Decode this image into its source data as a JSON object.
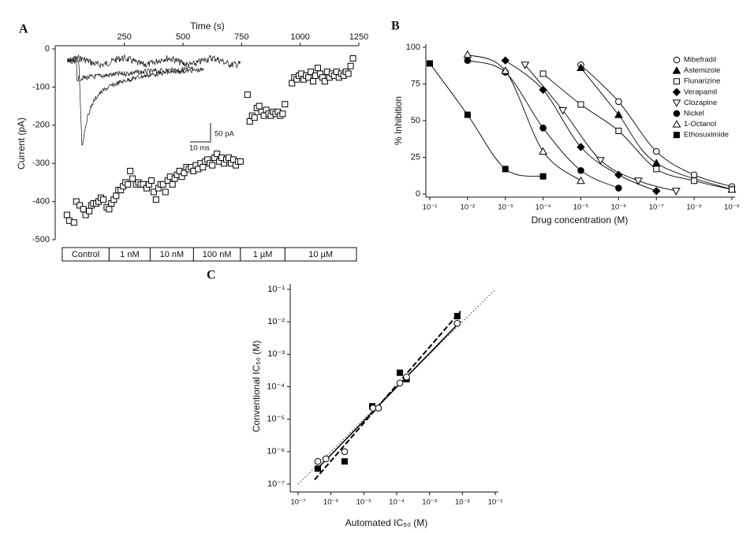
{
  "chart_data": [
    {
      "type": "scatter",
      "panel": "A",
      "xlabel": "Time (s)",
      "ylabel": "Current (pA)",
      "x": [
        5,
        15,
        35,
        45,
        60,
        75,
        85,
        100,
        110,
        118,
        130,
        140,
        150,
        160,
        175,
        185,
        195,
        205,
        215,
        225,
        235,
        245,
        255,
        265,
        275,
        285,
        300,
        310,
        320,
        330,
        345,
        355,
        365,
        375,
        385,
        395,
        405,
        415,
        425,
        435,
        445,
        455,
        465,
        475,
        485,
        495,
        505,
        515,
        525,
        535,
        545,
        555,
        565,
        575,
        585,
        595,
        605,
        615,
        625,
        635,
        645,
        655,
        665,
        675,
        685,
        695,
        705,
        715,
        725,
        735,
        745,
        775,
        785,
        795,
        805,
        815,
        825,
        835,
        845,
        855,
        865,
        875,
        885,
        895,
        905,
        915,
        925,
        935,
        965,
        975,
        985,
        995,
        1005,
        1015,
        1025,
        1035,
        1045,
        1055,
        1065,
        1075,
        1085,
        1095,
        1105,
        1115,
        1125,
        1135,
        1145,
        1155,
        1165,
        1175,
        1185,
        1195,
        1205,
        1215,
        1225
      ],
      "values": [
        -435,
        -450,
        -455,
        -400,
        -410,
        -420,
        -435,
        -425,
        -410,
        -405,
        -405,
        -400,
        -390,
        -395,
        -415,
        -420,
        -405,
        -395,
        -385,
        -370,
        -370,
        -360,
        -350,
        -355,
        -320,
        -340,
        -355,
        -350,
        -355,
        -355,
        -365,
        -355,
        -345,
        -375,
        -395,
        -365,
        -355,
        -355,
        -375,
        -345,
        -335,
        -355,
        -340,
        -330,
        -320,
        -335,
        -325,
        -310,
        -315,
        -310,
        -320,
        -305,
        -315,
        -300,
        -310,
        -295,
        -290,
        -300,
        -305,
        -285,
        -275,
        -295,
        -285,
        -300,
        -290,
        -285,
        -300,
        -290,
        -305,
        -295,
        -295,
        -120,
        -190,
        -175,
        -180,
        -155,
        -150,
        -165,
        -175,
        -160,
        -170,
        -175,
        -165,
        -170,
        -165,
        -175,
        -170,
        -145,
        -90,
        -75,
        -80,
        -70,
        -65,
        -80,
        -70,
        -75,
        -60,
        -85,
        -70,
        -50,
        -65,
        -75,
        -85,
        -60,
        -75,
        -65,
        -70,
        -60,
        -75,
        -65,
        -70,
        -60,
        -65,
        -45,
        -25
      ],
      "marker": "square-open",
      "color": "#000000",
      "xlim": [
        -45,
        1250
      ],
      "xticks": [
        250,
        500,
        750,
        1000,
        1250
      ],
      "xaxis_position": "top",
      "ylim": [
        -500,
        0
      ],
      "yticks": [
        0,
        -100,
        -200,
        -300,
        -400,
        -500
      ],
      "periods": [
        {
          "label": "Control",
          "start": -15,
          "end": 185
        },
        {
          "label": "1 nM",
          "start": 185,
          "end": 360
        },
        {
          "label": "10 nM",
          "start": 360,
          "end": 545
        },
        {
          "label": "100 nM",
          "start": 545,
          "end": 745
        },
        {
          "label": "1 µM",
          "start": 745,
          "end": 935
        },
        {
          "label": "10 µM",
          "start": 935,
          "end": 1240
        }
      ],
      "inset_scale_labels": [
        "50 pA",
        "10 ms"
      ]
    },
    {
      "type": "scatter",
      "panel": "B",
      "xlabel": "Drug concentration (M)",
      "ylabel": "% Inhibition",
      "xscale": "log",
      "xlim": [
        0.1,
        1e-09
      ],
      "xticks": [
        {
          "value": 0.1,
          "label": "10⁻¹"
        },
        {
          "value": 0.01,
          "label": "10⁻²"
        },
        {
          "value": 0.001,
          "label": "10⁻³"
        },
        {
          "value": 0.0001,
          "label": "10⁻⁴"
        },
        {
          "value": 1e-05,
          "label": "10⁻⁵"
        },
        {
          "value": 1e-06,
          "label": "10⁻⁶"
        },
        {
          "value": 1e-07,
          "label": "10⁻⁷"
        },
        {
          "value": 1e-08,
          "label": "10⁻⁸"
        },
        {
          "value": 1e-09,
          "label": "10⁻⁹"
        }
      ],
      "ylim": [
        0,
        100
      ],
      "yticks": [
        0,
        25,
        50,
        75,
        100
      ],
      "fit": "curve",
      "legend": "upper right",
      "series": [
        {
          "name": "Mibefradil",
          "marker": "circle-open",
          "color": "#000000",
          "x": [
            1e-05,
            1e-06,
            1e-07,
            1e-08,
            1e-09
          ],
          "values": [
            88,
            63,
            29,
            13,
            5
          ]
        },
        {
          "name": "Astemizole",
          "marker": "triangle-filled",
          "color": "#000000",
          "x": [
            1e-05,
            1e-06,
            1e-07,
            1e-09
          ],
          "values": [
            86,
            54,
            21,
            3
          ]
        },
        {
          "name": "Flunarizine",
          "marker": "square-open",
          "color": "#000000",
          "x": [
            0.0001,
            1e-05,
            1e-06,
            1e-07,
            1e-08,
            1e-09
          ],
          "values": [
            82,
            61,
            43,
            17,
            9,
            3
          ]
        },
        {
          "name": "Verapamil",
          "marker": "diamond-filled",
          "color": "#000000",
          "x": [
            0.001,
            0.0001,
            1e-05,
            1e-06,
            1e-07
          ],
          "values": [
            91,
            71,
            32,
            13,
            2
          ]
        },
        {
          "name": "Clozapine",
          "marker": "triangle-down-open",
          "color": "#000000",
          "x": [
            0.0003,
            3e-05,
            3e-06,
            3e-07,
            3e-08
          ],
          "values": [
            88,
            57,
            23,
            9,
            2
          ]
        },
        {
          "name": "Nickel",
          "marker": "circle-filled",
          "color": "#000000",
          "x": [
            0.01,
            0.001,
            0.0001,
            1e-05,
            1e-06
          ],
          "values": [
            91,
            83,
            45,
            16,
            4
          ]
        },
        {
          "name": "1-Octanol",
          "marker": "triangle-open",
          "color": "#000000",
          "x": [
            0.01,
            0.001,
            0.0001,
            1e-05
          ],
          "values": [
            95,
            84,
            29,
            9
          ]
        },
        {
          "name": "Ethosuximide",
          "marker": "square-filled",
          "color": "#000000",
          "x": [
            0.1,
            0.01,
            0.001,
            0.0001
          ],
          "values": [
            89,
            54,
            17,
            12
          ]
        }
      ]
    },
    {
      "type": "scatter",
      "panel": "C",
      "xlabel": "Automated IC₅₀ (M)",
      "ylabel": "Conventional IC₅₀ (M)",
      "xscale": "log",
      "yscale": "log",
      "xlim": [
        1e-07,
        0.1
      ],
      "ylim": [
        1e-07,
        0.1
      ],
      "xticks": [
        {
          "value": 1e-07,
          "label": "10⁻⁷"
        },
        {
          "value": 1e-06,
          "label": "10⁻⁶"
        },
        {
          "value": 1e-05,
          "label": "10⁻⁵"
        },
        {
          "value": 0.0001,
          "label": "10⁻⁴"
        },
        {
          "value": 0.001,
          "label": "10⁻³"
        },
        {
          "value": 0.01,
          "label": "10⁻²"
        },
        {
          "value": 0.1,
          "label": "10⁻¹"
        }
      ],
      "yticks": [
        {
          "value": 1e-07,
          "label": "10⁻⁷"
        },
        {
          "value": 1e-06,
          "label": "10⁻⁶"
        },
        {
          "value": 1e-05,
          "label": "10⁻⁵"
        },
        {
          "value": 0.0001,
          "label": "10⁻⁴"
        },
        {
          "value": 0.001,
          "label": "10⁻³"
        },
        {
          "value": 0.01,
          "label": "10⁻²"
        },
        {
          "value": 0.1,
          "label": "10⁻¹"
        }
      ],
      "fit": "linear",
      "identity_line": true,
      "series": [
        {
          "marker": "square-filled",
          "color": "#000000",
          "line": "dashed",
          "x": [
            4e-07,
            2.6e-06,
            1.8e-05,
            0.000125,
            0.0002,
            0.007
          ],
          "values": [
            3e-07,
            5e-07,
            2.5e-05,
            0.00027,
            0.00017,
            0.015
          ]
        },
        {
          "marker": "circle-open",
          "color": "#000000",
          "line": "solid",
          "x": [
            4e-07,
            7e-07,
            2.6e-06,
            1.9e-05,
            2.8e-05,
            0.000125,
            0.0002,
            0.007
          ],
          "values": [
            5e-07,
            6e-07,
            1e-06,
            2.2e-05,
            2.2e-05,
            0.00013,
            0.0002,
            0.009
          ]
        }
      ]
    }
  ]
}
